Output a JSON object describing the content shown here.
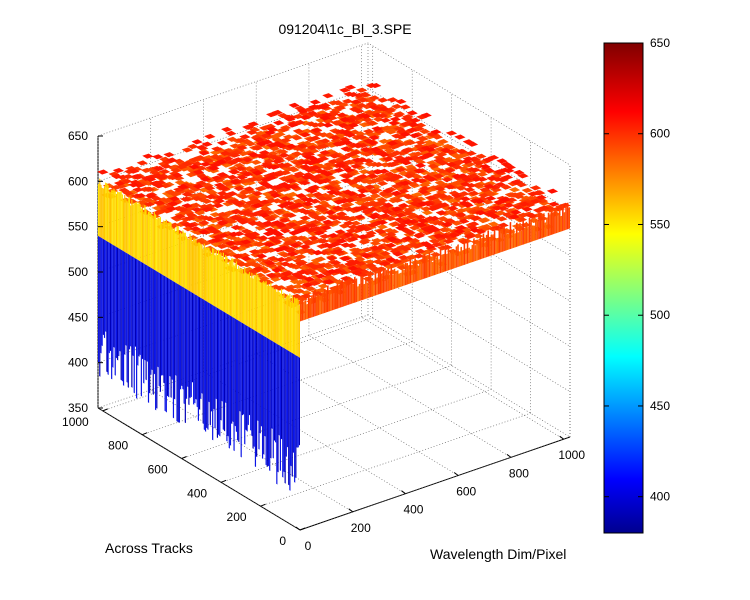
{
  "chart_data": {
    "type": "surface",
    "title": "091204\\1c_Bl_3.SPE",
    "xlabel": "Wavelength Dim/Pixel",
    "ylabel": "Across Tracks",
    "zlabel": "",
    "x_ticks": [
      "0",
      "200",
      "400",
      "600",
      "800",
      "1000"
    ],
    "y_ticks": [
      "0",
      "200",
      "400",
      "600",
      "800",
      "1000"
    ],
    "z_ticks": [
      "350",
      "400",
      "450",
      "500",
      "550",
      "600",
      "650"
    ],
    "xlim": [
      0,
      1024
    ],
    "ylim": [
      0,
      1024
    ],
    "zlim": [
      350,
      650
    ],
    "colormap": "jet",
    "colorbar": {
      "range": [
        380,
        650
      ],
      "ticks": [
        "400",
        "450",
        "500",
        "550",
        "600",
        "650"
      ]
    },
    "grid": true,
    "surface_levels": {
      "plateau_typical": 600,
      "plateau_range": [
        585,
        630
      ],
      "edge_band_level": 555,
      "low_region_range": [
        385,
        450
      ],
      "low_region_description": ""
    }
  }
}
